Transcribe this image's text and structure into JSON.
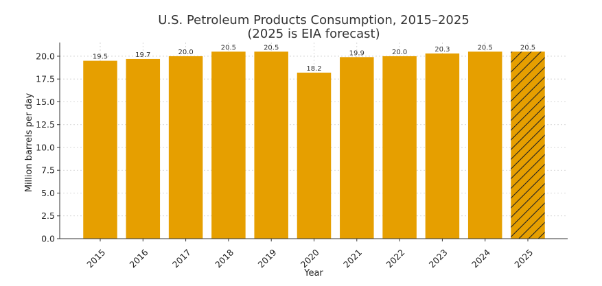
{
  "chart_data": {
    "type": "bar",
    "title": "U.S. Petroleum Products Consumption, 2015–2025",
    "subtitle": "(2025 is EIA forecast)",
    "xlabel": "Year",
    "ylabel": "Million barrels per day",
    "categories": [
      "2015",
      "2016",
      "2017",
      "2018",
      "2019",
      "2020",
      "2021",
      "2022",
      "2023",
      "2024",
      "2025"
    ],
    "values": [
      19.5,
      19.7,
      20.0,
      20.5,
      20.5,
      18.2,
      19.9,
      20.0,
      20.3,
      20.5,
      20.5
    ],
    "data_labels": [
      "19.5",
      "19.7",
      "20.0",
      "20.5",
      "20.5",
      "18.2",
      "19.9",
      "20.0",
      "20.3",
      "20.5",
      "20.5"
    ],
    "forecast_categories": [
      "2025"
    ],
    "ylim": [
      0,
      21.5
    ],
    "yticks": [
      0,
      2.5,
      5,
      7.5,
      10,
      12.5,
      15,
      17.5,
      20
    ],
    "ytick_labels": [
      "0.0",
      "2.5",
      "5.0",
      "7.5",
      "10.0",
      "12.5",
      "15.0",
      "17.5",
      "20.0"
    ],
    "grid": true,
    "bar_color": "#E69F00",
    "hatch_color": "#222222",
    "grid_color": "#cccccc"
  }
}
